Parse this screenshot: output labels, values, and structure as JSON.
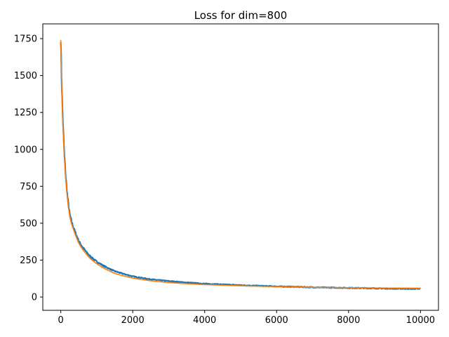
{
  "chart_data": {
    "type": "line",
    "title": "Loss for dim=800",
    "xlabel": "",
    "ylabel": "",
    "xlim": [
      -500,
      10500
    ],
    "ylim": [
      -90,
      1850
    ],
    "xticks": [
      0,
      2000,
      4000,
      6000,
      8000,
      10000
    ],
    "xtick_labels": [
      "0",
      "2000",
      "4000",
      "6000",
      "8000",
      "10000"
    ],
    "yticks": [
      0,
      250,
      500,
      750,
      1000,
      1250,
      1500,
      1750
    ],
    "ytick_labels": [
      "0",
      "250",
      "500",
      "750",
      "1000",
      "1250",
      "1500",
      "1750"
    ],
    "grid": false,
    "legend": false,
    "series": [
      {
        "color": "#1f77b4",
        "noisy": true,
        "x": [
          0,
          20,
          50,
          100,
          150,
          200,
          250,
          300,
          400,
          500,
          600,
          800,
          1000,
          1200,
          1500,
          2000,
          2500,
          3000,
          3500,
          4000,
          5000,
          6000,
          7000,
          8000,
          9000,
          10000
        ],
        "y": [
          1760,
          1500,
          1250,
          960,
          780,
          650,
          560,
          510,
          440,
          380,
          340,
          280,
          240,
          210,
          175,
          140,
          120,
          108,
          98,
          90,
          80,
          72,
          66,
          62,
          58,
          55
        ]
      },
      {
        "color": "#ff7f0e",
        "noisy": false,
        "x": [
          0,
          20,
          50,
          100,
          150,
          200,
          250,
          300,
          400,
          500,
          600,
          800,
          1000,
          1200,
          1500,
          2000,
          2500,
          3000,
          3500,
          4000,
          5000,
          6000,
          7000,
          8000,
          9000,
          10000
        ],
        "y": [
          1740,
          1480,
          1220,
          940,
          760,
          630,
          545,
          495,
          425,
          365,
          325,
          265,
          225,
          195,
          160,
          128,
          110,
          98,
          90,
          84,
          76,
          70,
          66,
          63,
          61,
          60
        ]
      }
    ]
  }
}
